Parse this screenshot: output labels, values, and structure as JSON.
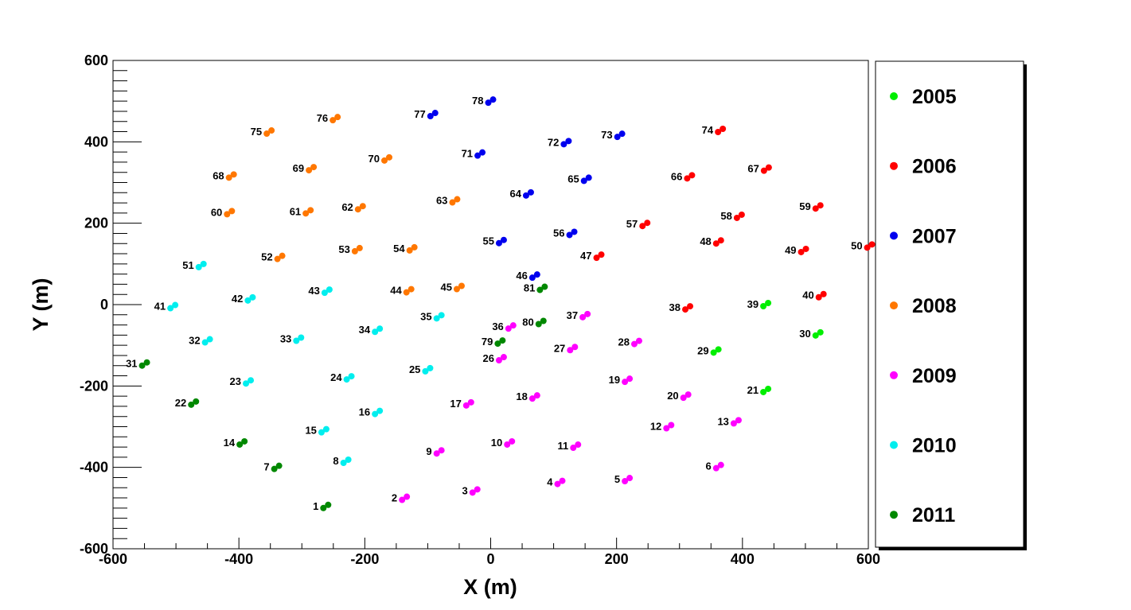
{
  "chart_data": {
    "type": "scatter",
    "xlabel": "X (m)",
    "ylabel": "Y (m)",
    "xlim": [
      -600,
      600
    ],
    "ylim": [
      -600,
      600
    ],
    "x_ticks": [
      -600,
      -400,
      -200,
      0,
      200,
      400,
      600
    ],
    "y_ticks": [
      -600,
      -400,
      -200,
      0,
      200,
      400,
      600
    ],
    "grid": false,
    "legend_position": "right",
    "series": [
      {
        "name": "2005",
        "color": "#00ee00",
        "points": [
          {
            "id": "21",
            "x": 437,
            "y": -211
          },
          {
            "id": "29",
            "x": 358,
            "y": -114
          },
          {
            "id": "30",
            "x": 520,
            "y": -72
          },
          {
            "id": "39",
            "x": 437,
            "y": 0
          }
        ]
      },
      {
        "name": "2006",
        "color": "#ff0000",
        "points": [
          {
            "id": "38",
            "x": 313,
            "y": -8
          },
          {
            "id": "40",
            "x": 525,
            "y": 22
          },
          {
            "id": "47",
            "x": 172,
            "y": 119
          },
          {
            "id": "48",
            "x": 362,
            "y": 154
          },
          {
            "id": "49",
            "x": 497,
            "y": 133
          },
          {
            "id": "50",
            "x": 602,
            "y": 144
          },
          {
            "id": "57",
            "x": 245,
            "y": 197
          },
          {
            "id": "58",
            "x": 395,
            "y": 217
          },
          {
            "id": "59",
            "x": 520,
            "y": 240
          },
          {
            "id": "66",
            "x": 316,
            "y": 314
          },
          {
            "id": "67",
            "x": 438,
            "y": 333
          },
          {
            "id": "74",
            "x": 365,
            "y": 428
          }
        ]
      },
      {
        "name": "2007",
        "color": "#0000ee",
        "points": [
          {
            "id": "46",
            "x": 70,
            "y": 70
          },
          {
            "id": "55",
            "x": 17,
            "y": 155
          },
          {
            "id": "56",
            "x": 129,
            "y": 175
          },
          {
            "id": "64",
            "x": 60,
            "y": 272
          },
          {
            "id": "65",
            "x": 152,
            "y": 308
          },
          {
            "id": "71",
            "x": -17,
            "y": 370
          },
          {
            "id": "72",
            "x": 120,
            "y": 398
          },
          {
            "id": "73",
            "x": 205,
            "y": 416
          },
          {
            "id": "77",
            "x": -92,
            "y": 467
          },
          {
            "id": "78",
            "x": 0,
            "y": 500
          }
        ]
      },
      {
        "name": "2008",
        "color": "#ff7700",
        "points": [
          {
            "id": "44",
            "x": -130,
            "y": 34
          },
          {
            "id": "45",
            "x": -50,
            "y": 42
          },
          {
            "id": "52",
            "x": -335,
            "y": 116
          },
          {
            "id": "53",
            "x": -212,
            "y": 135
          },
          {
            "id": "54",
            "x": -125,
            "y": 137
          },
          {
            "id": "60",
            "x": -415,
            "y": 226
          },
          {
            "id": "61",
            "x": -290,
            "y": 228
          },
          {
            "id": "62",
            "x": -207,
            "y": 238
          },
          {
            "id": "63",
            "x": -57,
            "y": 255
          },
          {
            "id": "68",
            "x": -412,
            "y": 316
          },
          {
            "id": "69",
            "x": -285,
            "y": 334
          },
          {
            "id": "70",
            "x": -165,
            "y": 358
          },
          {
            "id": "75",
            "x": -352,
            "y": 424
          },
          {
            "id": "76",
            "x": -247,
            "y": 457
          }
        ]
      },
      {
        "name": "2009",
        "color": "#ff00ff",
        "points": [
          {
            "id": "2",
            "x": -137,
            "y": -476
          },
          {
            "id": "3",
            "x": -25,
            "y": -458
          },
          {
            "id": "4",
            "x": 110,
            "y": -437
          },
          {
            "id": "5",
            "x": 217,
            "y": -430
          },
          {
            "id": "6",
            "x": 362,
            "y": -398
          },
          {
            "id": "9",
            "x": -82,
            "y": -362
          },
          {
            "id": "10",
            "x": 30,
            "y": -340
          },
          {
            "id": "11",
            "x": 135,
            "y": -348
          },
          {
            "id": "12",
            "x": 283,
            "y": -300
          },
          {
            "id": "13",
            "x": 390,
            "y": -288
          },
          {
            "id": "17",
            "x": -35,
            "y": -244
          },
          {
            "id": "18",
            "x": 70,
            "y": -227
          },
          {
            "id": "19",
            "x": 217,
            "y": -186
          },
          {
            "id": "20",
            "x": 310,
            "y": -225
          },
          {
            "id": "26",
            "x": 17,
            "y": -133
          },
          {
            "id": "27",
            "x": 130,
            "y": -108
          },
          {
            "id": "28",
            "x": 232,
            "y": -93
          },
          {
            "id": "36",
            "x": 32,
            "y": -55
          },
          {
            "id": "37",
            "x": 150,
            "y": -27
          }
        ]
      },
      {
        "name": "2010",
        "color": "#00eeee",
        "points": [
          {
            "id": "8",
            "x": -230,
            "y": -385
          },
          {
            "id": "15",
            "x": -265,
            "y": -310
          },
          {
            "id": "16",
            "x": -180,
            "y": -265
          },
          {
            "id": "23",
            "x": -385,
            "y": -190
          },
          {
            "id": "24",
            "x": -225,
            "y": -180
          },
          {
            "id": "25",
            "x": -100,
            "y": -160
          },
          {
            "id": "32",
            "x": -450,
            "y": -89
          },
          {
            "id": "33",
            "x": -305,
            "y": -85
          },
          {
            "id": "34",
            "x": -180,
            "y": -63
          },
          {
            "id": "35",
            "x": -82,
            "y": -30
          },
          {
            "id": "41",
            "x": -505,
            "y": -5
          },
          {
            "id": "42",
            "x": -382,
            "y": 14
          },
          {
            "id": "43",
            "x": -260,
            "y": 33
          },
          {
            "id": "51",
            "x": -460,
            "y": 96
          }
        ]
      },
      {
        "name": "2011",
        "color": "#008800",
        "points": [
          {
            "id": "1",
            "x": -262,
            "y": -496
          },
          {
            "id": "7",
            "x": -340,
            "y": -400
          },
          {
            "id": "14",
            "x": -395,
            "y": -340
          },
          {
            "id": "22",
            "x": -472,
            "y": -242
          },
          {
            "id": "31",
            "x": -550,
            "y": -146
          },
          {
            "id": "79",
            "x": 15,
            "y": -92
          },
          {
            "id": "80",
            "x": 80,
            "y": -44
          },
          {
            "id": "81",
            "x": 82,
            "y": 40
          }
        ]
      }
    ]
  }
}
